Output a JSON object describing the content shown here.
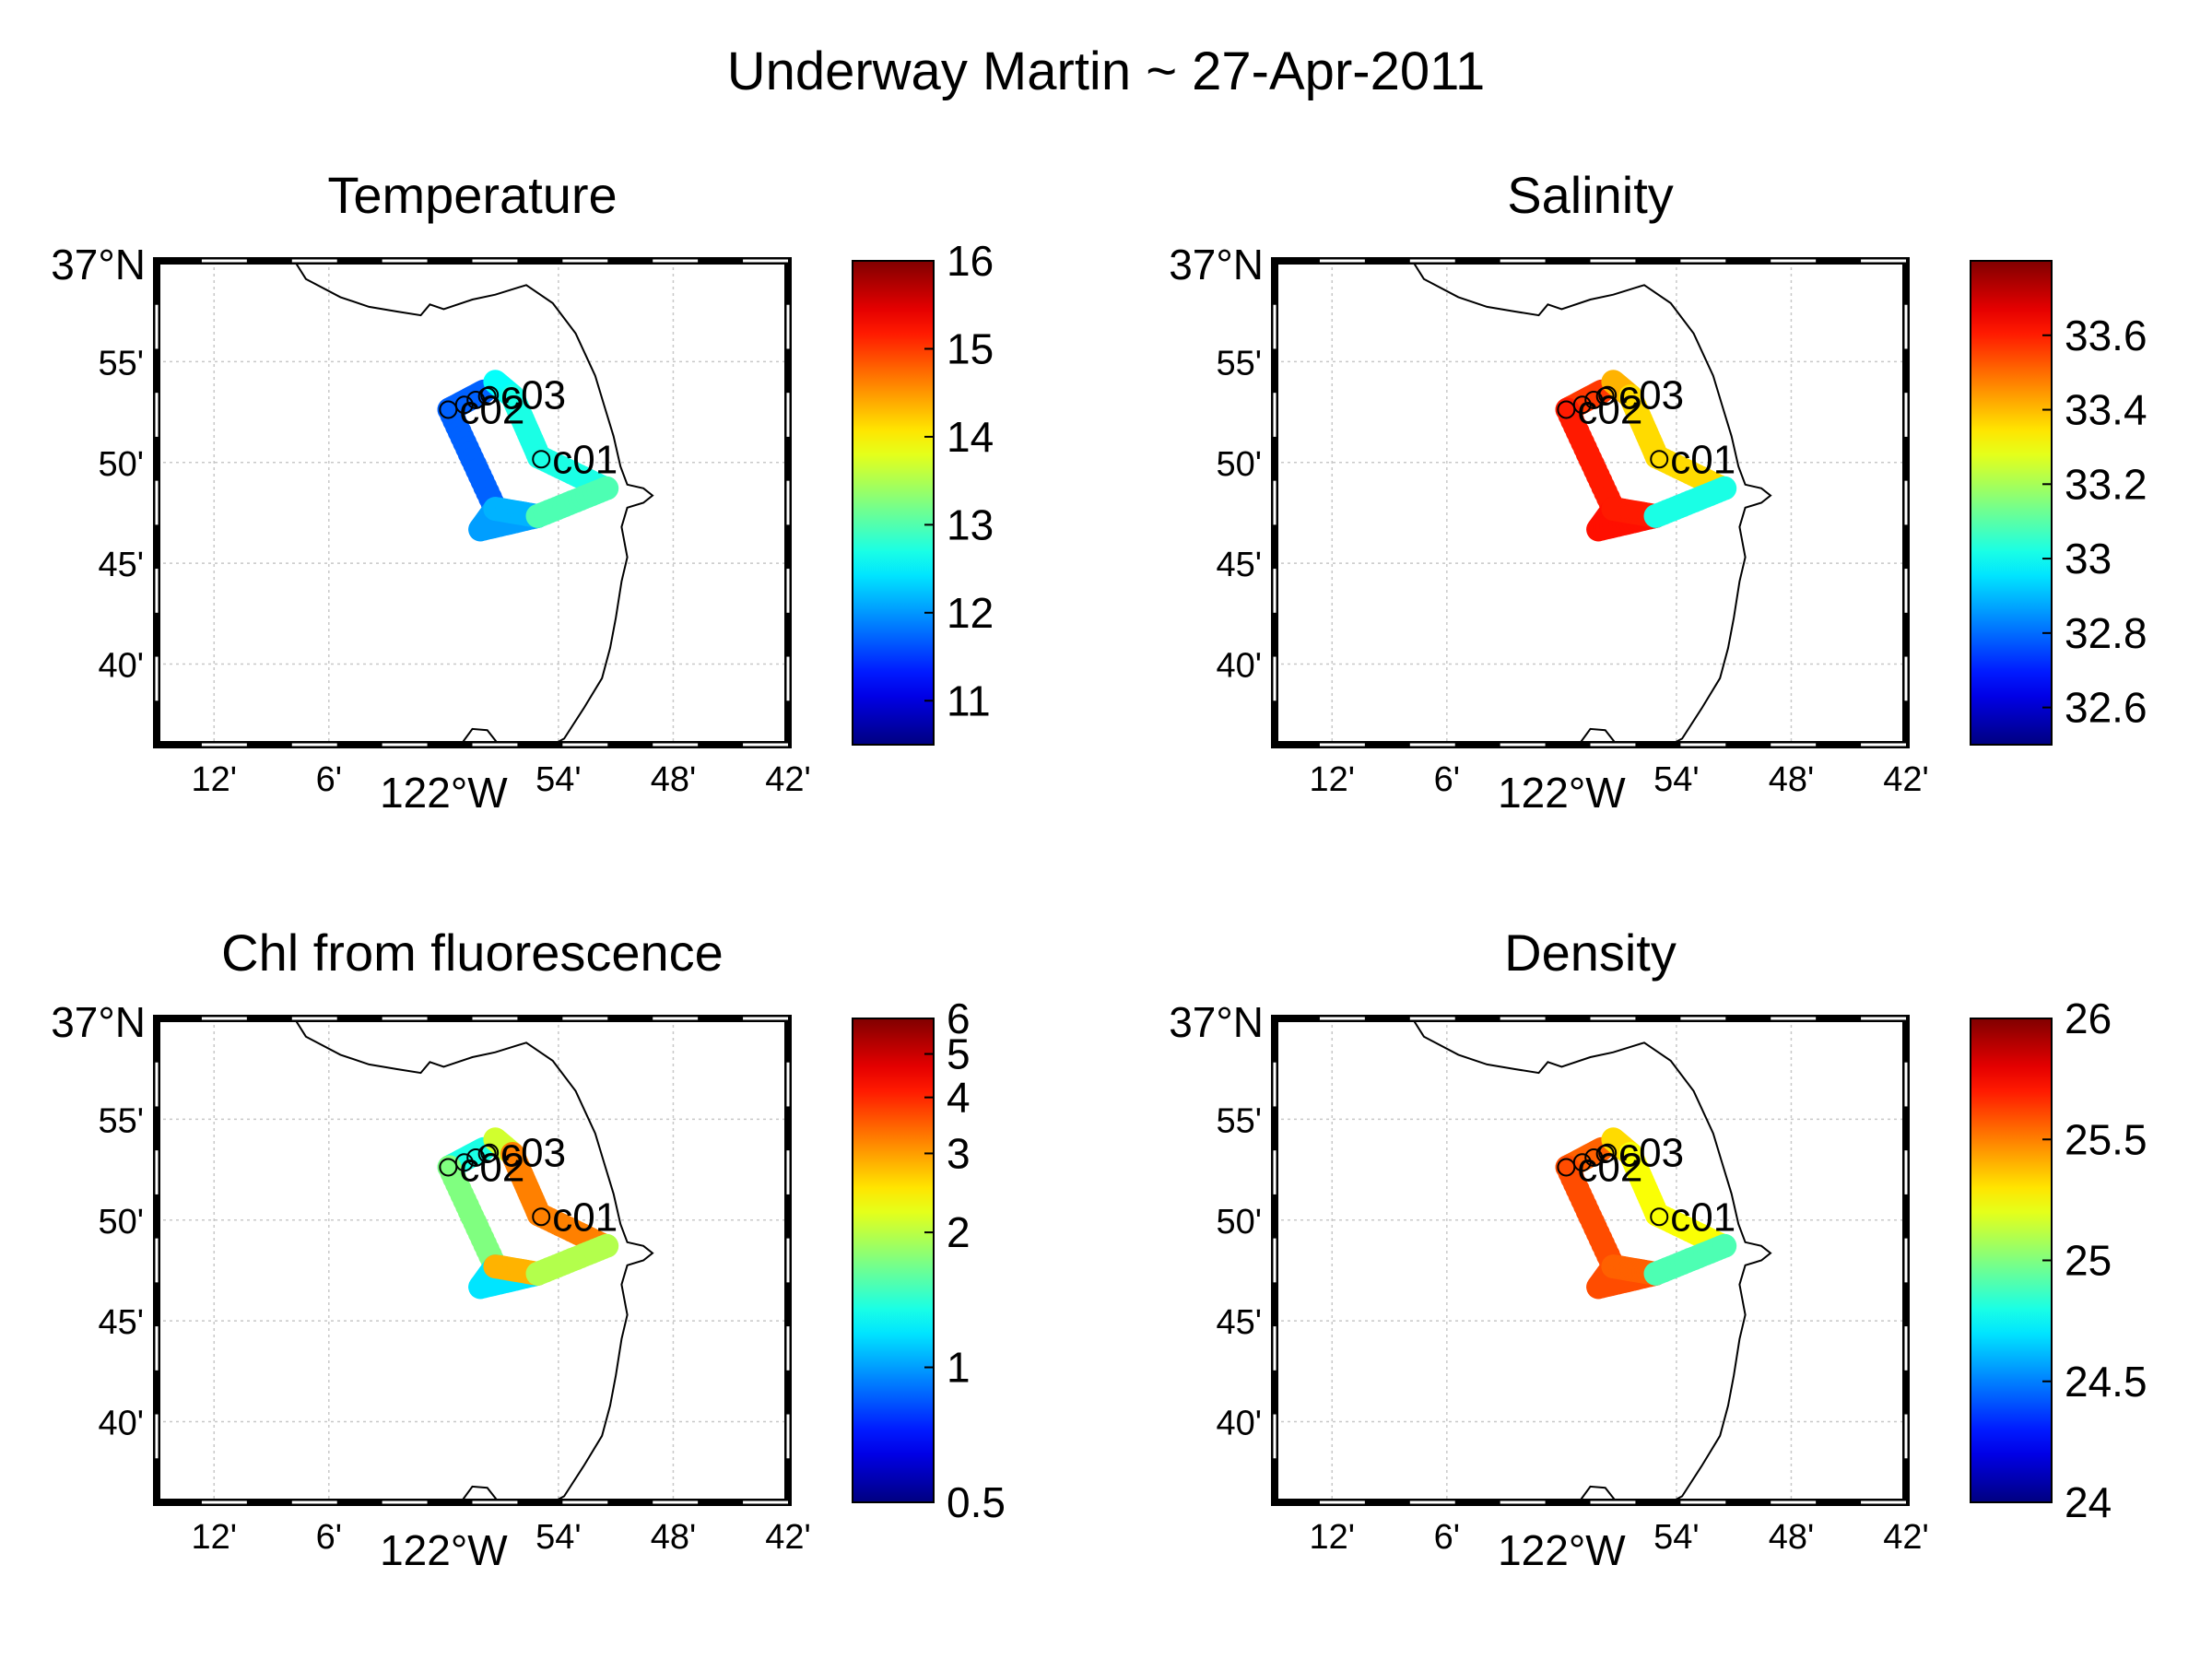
{
  "figure_title": "Underway Martin ~ 27-Apr-2011",
  "map": {
    "lat_label": "37°N",
    "lat_ticks": [
      "55'",
      "50'",
      "45'",
      "40'"
    ],
    "lon_ticks": [
      "12'",
      "6'",
      "54'",
      "48'",
      "42'"
    ],
    "lon_label": "122°W",
    "lon_range_deg": [
      -122.25,
      -121.7
    ],
    "lat_range_deg": [
      36.6,
      37.0
    ]
  },
  "stations": [
    {
      "name": "c01",
      "lon": -121.915,
      "lat": 36.836
    },
    {
      "name": "c02",
      "lon": -121.996,
      "lat": 36.877
    },
    {
      "name": "c03",
      "lon": -121.96,
      "lat": 36.889
    }
  ],
  "panels": [
    {
      "title": "Temperature",
      "colorbar": {
        "min": 10.5,
        "max": 16.0,
        "scale": "linear",
        "ticks": [
          "11",
          "12",
          "13",
          "14",
          "15",
          "16"
        ]
      },
      "colors": {
        "start": 0.22,
        "west": 0.22,
        "south": 0.28,
        "middle": 0.3,
        "nbranch": 0.4,
        "east": 0.45,
        "north": 0.38
      }
    },
    {
      "title": "Salinity",
      "colorbar": {
        "min": 32.5,
        "max": 33.8,
        "scale": "linear",
        "ticks": [
          "32.6",
          "32.8",
          "33",
          "33.2",
          "33.4",
          "33.6"
        ]
      },
      "colors": {
        "start": 0.82,
        "west": 0.85,
        "south": 0.86,
        "middle": 0.85,
        "nbranch": 0.66,
        "east": 0.4,
        "north": 0.7
      }
    },
    {
      "title": "Chl from fluorescence",
      "colorbar": {
        "min": 0.5,
        "max": 6.0,
        "scale": "log",
        "ticks": [
          "0.5",
          "1",
          "2",
          "3",
          "4",
          "5",
          "6"
        ]
      },
      "colors": {
        "start": 0.4,
        "west": 0.5,
        "south": 0.35,
        "middle": 0.7,
        "nbranch": 0.75,
        "east": 0.55,
        "north": 0.58
      }
    },
    {
      "title": "Density",
      "colorbar": {
        "min": 24.0,
        "max": 26.0,
        "scale": "linear",
        "ticks": [
          "24",
          "24.5",
          "25",
          "25.5",
          "26"
        ]
      },
      "colors": {
        "start": 0.78,
        "west": 0.8,
        "south": 0.8,
        "middle": 0.78,
        "nbranch": 0.62,
        "east": 0.45,
        "north": 0.66
      }
    }
  ]
}
